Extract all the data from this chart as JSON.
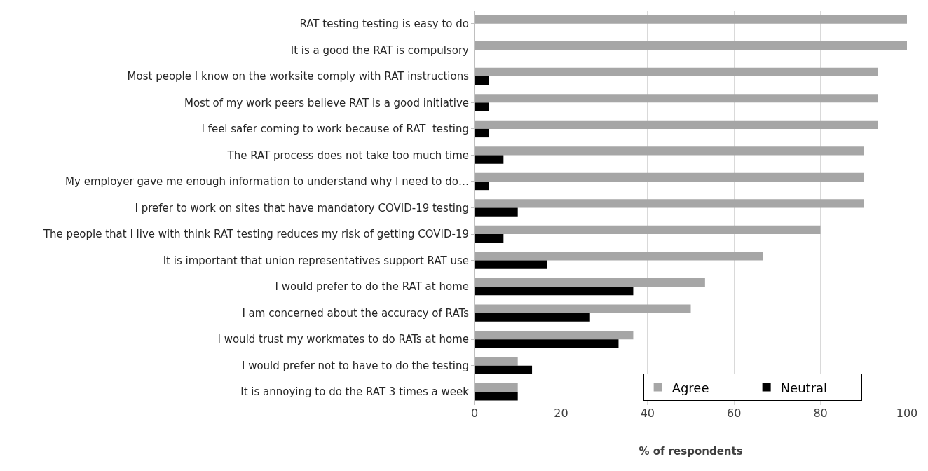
{
  "chart_data": {
    "type": "bar",
    "orientation": "horizontal",
    "xlabel": "% of respondents",
    "categories": [
      "RAT testing testing is easy to do",
      "It is a good the RAT is compulsory",
      "Most people I know on the worksite comply with RAT instructions",
      "Most of my work peers believe RAT is a good initiative",
      "I feel safer coming to work because of RAT  testing",
      "The RAT process does not take too much time",
      "My employer gave me enough information to understand why I need to do…",
      "I prefer to work on sites that have mandatory COVID-19 testing",
      "The people that I live with think RAT testing reduces my risk of getting COVID-19",
      "It is important that union representatives support RAT use",
      "I would prefer to do the RAT at home",
      "I am concerned about the accuracy of RATs",
      "I would trust my workmates to do RATs at home",
      "I would prefer not to have to do the testing",
      "It is annoying to do the RAT 3 times a week"
    ],
    "series": [
      {
        "name": "Agree",
        "color": "#a6a6a6",
        "values": [
          100,
          100,
          93.3,
          93.3,
          93.3,
          90,
          90,
          90,
          80,
          66.7,
          53.3,
          50,
          36.7,
          10,
          10
        ]
      },
      {
        "name": "Neutral",
        "color": "#000000",
        "values": [
          null,
          null,
          3.3,
          3.3,
          3.3,
          6.7,
          3.3,
          10,
          6.7,
          16.7,
          36.7,
          26.7,
          33.3,
          13.3,
          10
        ]
      }
    ],
    "xlim": [
      0,
      100
    ],
    "xticks": [
      0,
      20,
      40,
      60,
      80,
      100
    ],
    "grid": "x",
    "legend": "bottom right"
  }
}
